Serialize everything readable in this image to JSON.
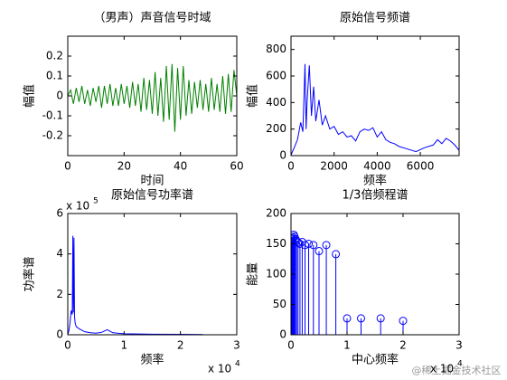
{
  "chart_data": [
    {
      "type": "line",
      "title": "（男声）声音信号时域",
      "xlabel": "时间",
      "ylabel": "幅值",
      "color": "#008000",
      "xlim": [
        0,
        60
      ],
      "ylim": [
        -0.3,
        0.3
      ],
      "xticks": [
        0,
        20,
        40,
        60
      ],
      "yticks": [
        -0.2,
        -0.1,
        0,
        0.1,
        0.2
      ],
      "x": [
        0,
        1,
        2,
        3,
        4,
        5,
        6,
        7,
        8,
        9,
        10,
        11,
        12,
        13,
        14,
        15,
        16,
        17,
        18,
        19,
        20,
        21,
        22,
        23,
        24,
        25,
        26,
        27,
        28,
        29,
        30,
        31,
        32,
        33,
        34,
        35,
        36,
        37,
        38,
        39,
        40,
        41,
        42,
        43,
        44,
        45,
        46,
        47,
        48,
        49,
        50,
        51,
        52,
        53,
        54,
        55,
        56,
        57,
        58,
        59,
        60
      ],
      "values": [
        0,
        0.03,
        -0.04,
        0.04,
        -0.03,
        0.05,
        -0.04,
        0.03,
        -0.05,
        0.04,
        -0.03,
        0.05,
        -0.06,
        0.05,
        -0.04,
        0.06,
        -0.05,
        0.04,
        -0.05,
        0.06,
        -0.04,
        0.05,
        -0.06,
        0.07,
        -0.05,
        0.06,
        -0.08,
        0.09,
        -0.07,
        0.08,
        -0.09,
        0.12,
        -0.1,
        0.09,
        -0.13,
        0.15,
        -0.12,
        0.16,
        -0.18,
        0.14,
        -0.12,
        0.15,
        -0.1,
        0.08,
        -0.09,
        0.07,
        -0.06,
        0.08,
        -0.07,
        0.06,
        -0.08,
        0.09,
        -0.07,
        0.06,
        -0.08,
        0.1,
        -0.09,
        0.11,
        -0.08,
        0.13,
        0
      ]
    },
    {
      "type": "line",
      "title": "原始信号频谱",
      "xlabel": "频率",
      "ylabel": "幅值",
      "color": "#0000ff",
      "xlim": [
        0,
        7800
      ],
      "ylim": [
        0,
        900
      ],
      "xticks": [
        0,
        2000,
        4000,
        6000
      ],
      "yticks": [
        0,
        200,
        400,
        600,
        800
      ],
      "x": [
        0,
        150,
        300,
        450,
        550,
        650,
        700,
        750,
        850,
        950,
        1050,
        1150,
        1300,
        1450,
        1600,
        1800,
        2000,
        2200,
        2400,
        2600,
        2800,
        3000,
        3200,
        3400,
        3600,
        3800,
        4000,
        4200,
        4400,
        4600,
        4800,
        5000,
        5400,
        5800,
        6200,
        6600,
        6800,
        7000,
        7200,
        7400,
        7600,
        7800
      ],
      "values": [
        5,
        60,
        120,
        250,
        180,
        690,
        200,
        420,
        680,
        300,
        520,
        260,
        420,
        230,
        300,
        200,
        220,
        160,
        180,
        140,
        150,
        110,
        180,
        200,
        190,
        210,
        140,
        180,
        120,
        100,
        90,
        70,
        50,
        30,
        60,
        80,
        120,
        90,
        130,
        110,
        80,
        40
      ]
    },
    {
      "type": "line",
      "title": "原始信号功率谱",
      "xlabel": "频率",
      "ylabel": "功率谱",
      "color": "#0000ff",
      "x_multiplier": "x 10",
      "x_exponent": "4",
      "y_multiplier": "x 10",
      "y_exponent": "5",
      "xlim": [
        0,
        30000
      ],
      "ylim": [
        0,
        600000
      ],
      "xticks": [
        0,
        {
          "value": 10000,
          "label": "1"
        },
        {
          "value": 20000,
          "label": "2"
        },
        {
          "value": 30000,
          "label": "3"
        }
      ],
      "yticks": [
        0,
        {
          "value": 200000,
          "label": "2"
        },
        {
          "value": 400000,
          "label": "4"
        },
        {
          "value": 600000,
          "label": "6"
        }
      ],
      "x": [
        0,
        200,
        400,
        600,
        800,
        900,
        1000,
        1100,
        1200,
        1300,
        1500,
        2000,
        3000,
        4000,
        5000,
        6000,
        7000,
        8000,
        10000,
        15000,
        20000,
        24000
      ],
      "values": [
        0,
        20000,
        60000,
        120000,
        100000,
        490000,
        110000,
        480000,
        90000,
        60000,
        40000,
        30000,
        15000,
        10000,
        8000,
        12000,
        25000,
        10000,
        5000,
        3000,
        2000,
        1000
      ]
    },
    {
      "type": "stem",
      "title": "1/3倍频程谱",
      "xlabel": "中心频率",
      "ylabel": "能量",
      "color": "#0000ff",
      "x_multiplier": "x 10",
      "x_exponent": "4",
      "xlim": [
        0,
        30000
      ],
      "ylim": [
        0,
        200
      ],
      "xticks": [
        0,
        {
          "value": 10000,
          "label": "1"
        },
        {
          "value": 20000,
          "label": "2"
        },
        {
          "value": 30000,
          "label": "3"
        }
      ],
      "yticks": [
        0,
        50,
        100,
        150,
        200
      ],
      "x": [
        25,
        31.5,
        40,
        50,
        63,
        80,
        100,
        125,
        160,
        200,
        250,
        315,
        400,
        500,
        630,
        800,
        1000,
        1250,
        1600,
        2000,
        2500,
        3150,
        4000,
        5000,
        6300,
        8000,
        10000,
        12500,
        16000,
        20000
      ],
      "values": [
        95,
        100,
        108,
        115,
        122,
        128,
        135,
        140,
        148,
        152,
        155,
        158,
        160,
        165,
        162,
        158,
        155,
        152,
        150,
        153,
        148,
        150,
        148,
        138,
        148,
        133,
        27,
        27,
        27,
        23
      ]
    }
  ],
  "watermark": "@稀土掘金技术社区"
}
